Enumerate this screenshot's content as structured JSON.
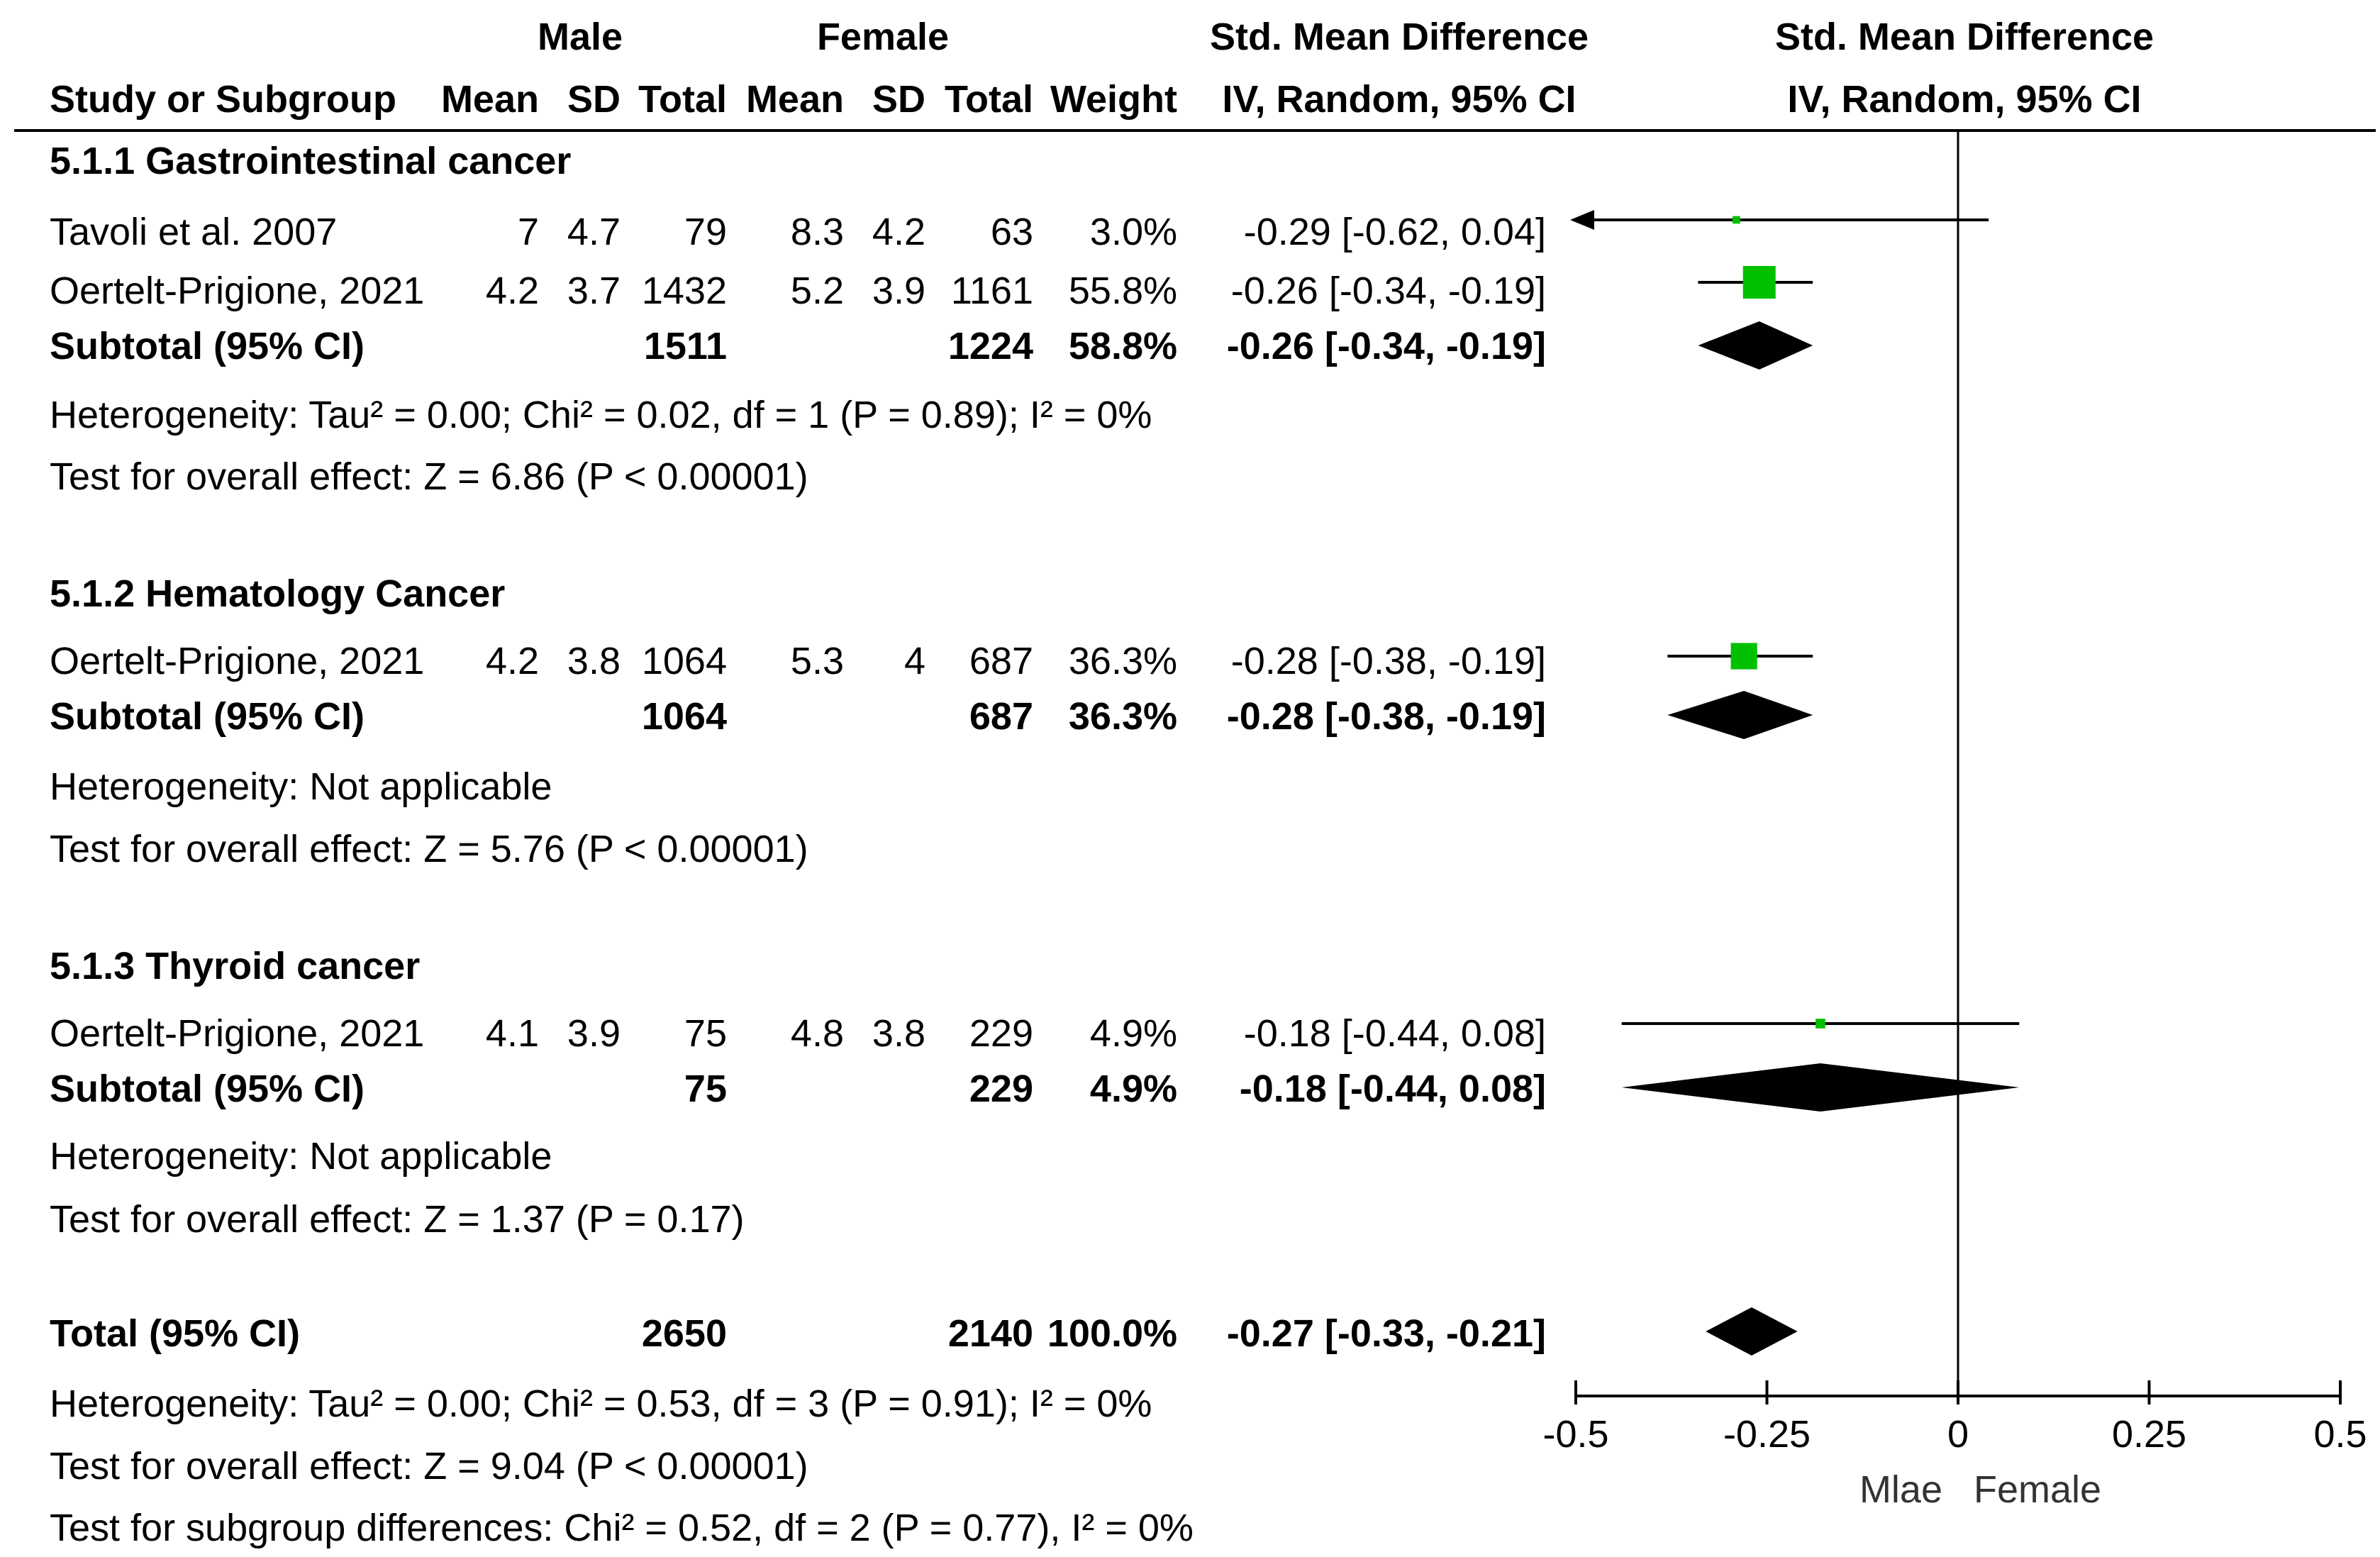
{
  "header": {
    "group_male": "Male",
    "group_female": "Female",
    "effect_title": "Std. Mean Difference",
    "plot_title": "Std. Mean Difference",
    "col_study": "Study or Subgroup",
    "col_male_mean": "Mean",
    "col_male_sd": "SD",
    "col_male_total": "Total",
    "col_female_mean": "Mean",
    "col_female_sd": "SD",
    "col_female_total": "Total",
    "col_weight": "Weight",
    "col_effect": "IV, Random, 95% CI",
    "col_plot": "IV, Random, 95% CI"
  },
  "subgroups": [
    {
      "title": "5.1.1 Gastrointestinal cancer",
      "studies": [
        {
          "name": "Tavoli et al. 2007",
          "m_mean": "7",
          "m_sd": "4.7",
          "m_total": "79",
          "f_mean": "8.3",
          "f_sd": "4.2",
          "f_total": "63",
          "weight": "3.0%",
          "ci": "-0.29 [-0.62, 0.04]"
        },
        {
          "name": "Oertelt-Prigione, 2021",
          "m_mean": "4.2",
          "m_sd": "3.7",
          "m_total": "1432",
          "f_mean": "5.2",
          "f_sd": "3.9",
          "f_total": "1161",
          "weight": "55.8%",
          "ci": "-0.26 [-0.34, -0.19]"
        }
      ],
      "subtotal": {
        "label": "Subtotal (95% CI)",
        "m_total": "1511",
        "f_total": "1224",
        "weight": "58.8%",
        "ci": "-0.26 [-0.34, -0.19]"
      },
      "heterogeneity": "Heterogeneity: Tau² = 0.00; Chi² = 0.02, df = 1 (P = 0.89); I² = 0%",
      "overall": "Test for overall effect: Z = 6.86 (P < 0.00001)"
    },
    {
      "title": "5.1.2 Hematology Cancer",
      "studies": [
        {
          "name": "Oertelt-Prigione, 2021",
          "m_mean": "4.2",
          "m_sd": "3.8",
          "m_total": "1064",
          "f_mean": "5.3",
          "f_sd": "4",
          "f_total": "687",
          "weight": "36.3%",
          "ci": "-0.28 [-0.38, -0.19]"
        }
      ],
      "subtotal": {
        "label": "Subtotal (95% CI)",
        "m_total": "1064",
        "f_total": "687",
        "weight": "36.3%",
        "ci": "-0.28 [-0.38, -0.19]"
      },
      "heterogeneity": "Heterogeneity: Not applicable",
      "overall": "Test for overall effect: Z = 5.76 (P < 0.00001)"
    },
    {
      "title": "5.1.3 Thyroid cancer",
      "studies": [
        {
          "name": "Oertelt-Prigione, 2021",
          "m_mean": "4.1",
          "m_sd": "3.9",
          "m_total": "75",
          "f_mean": "4.8",
          "f_sd": "3.8",
          "f_total": "229",
          "weight": "4.9%",
          "ci": "-0.18 [-0.44, 0.08]"
        }
      ],
      "subtotal": {
        "label": "Subtotal (95% CI)",
        "m_total": "75",
        "f_total": "229",
        "weight": "4.9%",
        "ci": "-0.18 [-0.44, 0.08]"
      },
      "heterogeneity": "Heterogeneity: Not applicable",
      "overall": "Test for overall effect: Z = 1.37 (P = 0.17)"
    }
  ],
  "total": {
    "label": "Total (95% CI)",
    "m_total": "2650",
    "f_total": "2140",
    "weight": "100.0%",
    "ci": "-0.27 [-0.33, -0.21]",
    "heterogeneity": "Heterogeneity: Tau² = 0.00; Chi² = 0.53, df = 3 (P = 0.91); I² = 0%",
    "overall": "Test for overall effect: Z = 9.04 (P < 0.00001)",
    "subgroup_diff": "Test for subgroup differences: Chi² = 0.52, df = 2 (P = 0.77), I² = 0%"
  },
  "axis": {
    "ticks": [
      "-0.5",
      "-0.25",
      "0",
      "0.25",
      "0.5"
    ],
    "label_left": "Mlae",
    "label_right": "Female"
  },
  "colors": {
    "study_marker": "#00c000",
    "diamond": "#000000",
    "line": "#000000"
  },
  "chart_data": {
    "type": "forest",
    "title": "Std. Mean Difference",
    "subtitle": "IV, Random, 95% CI",
    "xlim": [
      -0.5,
      0.5
    ],
    "xticks": [
      -0.5,
      -0.25,
      0,
      0.25,
      0.5
    ],
    "xlabel_left": "Mlae",
    "xlabel_right": "Female",
    "studies": [
      {
        "subgroup": "5.1.1 Gastrointestinal cancer",
        "name": "Tavoli et al. 2007",
        "est": -0.29,
        "lo": -0.62,
        "hi": 0.04,
        "weight": 3.0
      },
      {
        "subgroup": "5.1.1 Gastrointestinal cancer",
        "name": "Oertelt-Prigione, 2021",
        "est": -0.26,
        "lo": -0.34,
        "hi": -0.19,
        "weight": 55.8
      },
      {
        "subgroup": "5.1.2 Hematology Cancer",
        "name": "Oertelt-Prigione, 2021",
        "est": -0.28,
        "lo": -0.38,
        "hi": -0.19,
        "weight": 36.3
      },
      {
        "subgroup": "5.1.3 Thyroid cancer",
        "name": "Oertelt-Prigione, 2021",
        "est": -0.18,
        "lo": -0.44,
        "hi": 0.08,
        "weight": 4.9
      }
    ],
    "subtotals": [
      {
        "subgroup": "5.1.1 Gastrointestinal cancer",
        "est": -0.26,
        "lo": -0.34,
        "hi": -0.19
      },
      {
        "subgroup": "5.1.2 Hematology Cancer",
        "est": -0.28,
        "lo": -0.38,
        "hi": -0.19
      },
      {
        "subgroup": "5.1.3 Thyroid cancer",
        "est": -0.18,
        "lo": -0.44,
        "hi": 0.08
      }
    ],
    "overall": {
      "est": -0.27,
      "lo": -0.33,
      "hi": -0.21
    }
  }
}
